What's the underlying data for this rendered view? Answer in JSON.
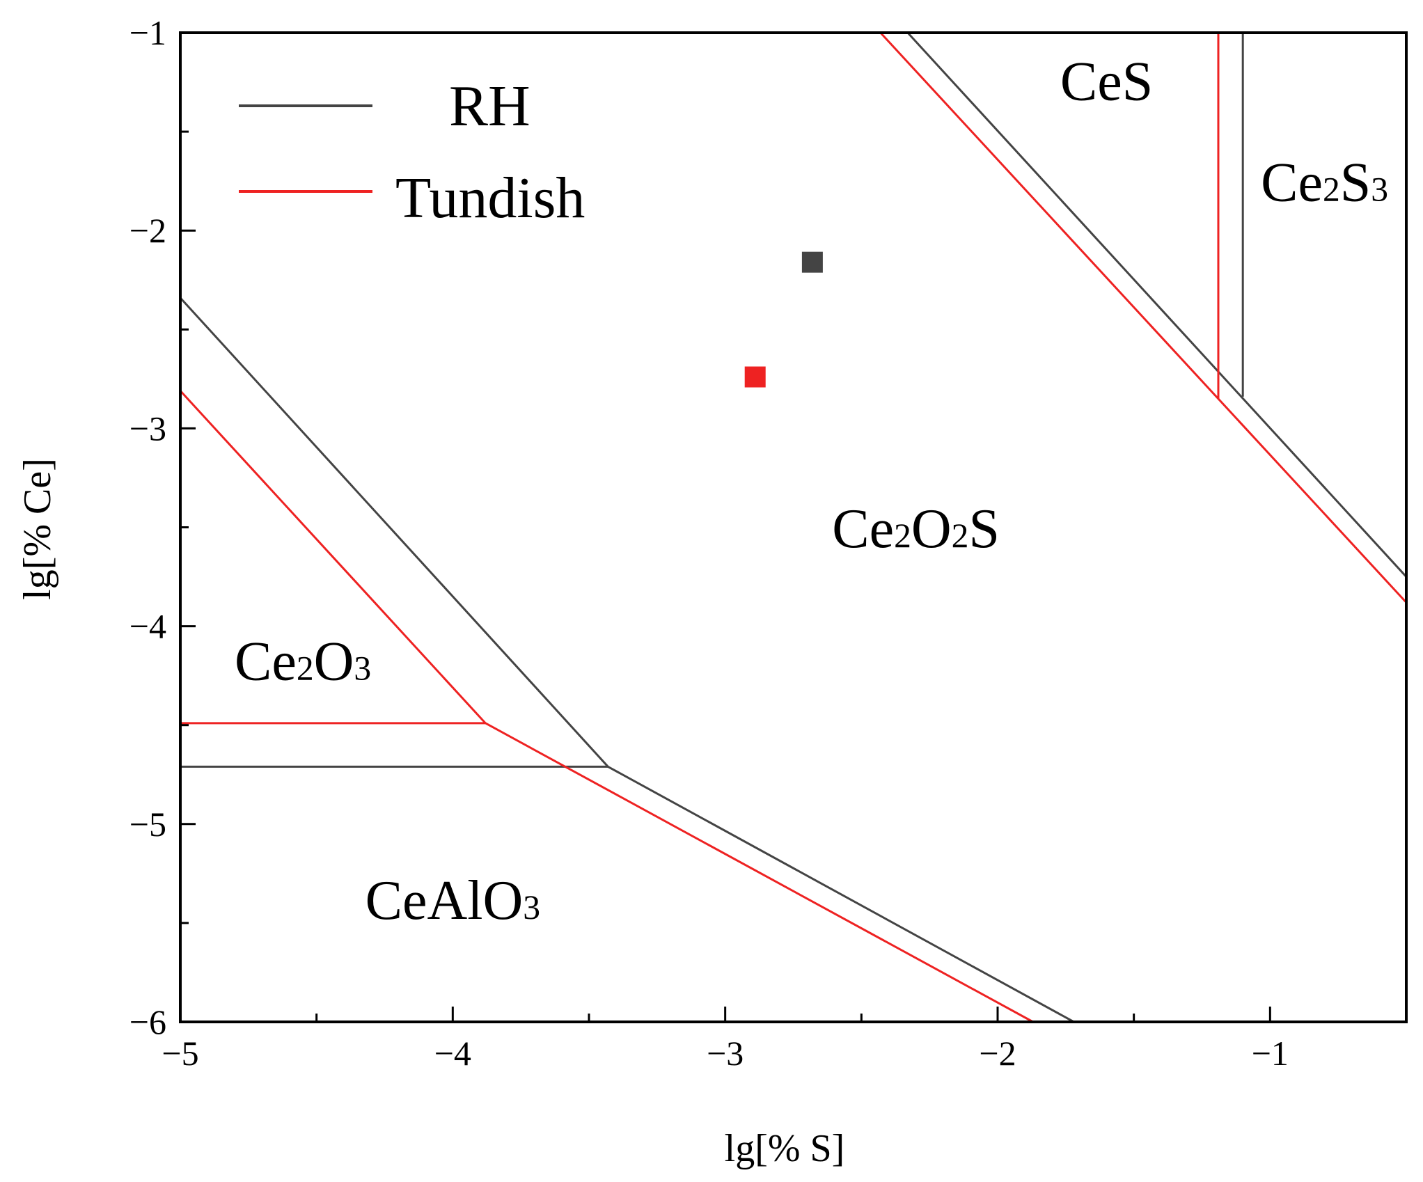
{
  "chart_data": {
    "type": "line",
    "title": "",
    "xlabel": "lg[% S]",
    "ylabel": "lg[% Ce]",
    "xlim": [
      -5,
      -0.5
    ],
    "ylim": [
      -6,
      -1
    ],
    "xticks": [
      -5,
      -4,
      -3,
      -2,
      -1
    ],
    "yticks": [
      -6,
      -5,
      -4,
      -3,
      -2,
      -1
    ],
    "tick_labels": {
      "x": [
        "−5",
        "−4",
        "−3",
        "−2",
        "−1"
      ],
      "y": [
        "−6",
        "−5",
        "−4",
        "−3",
        "−2",
        "−1"
      ]
    },
    "grid": false,
    "legend_position": "top-left",
    "series": [
      {
        "name": "RH",
        "color": "#444444",
        "boundaries": [
          [
            [
              -5.0,
              -2.34
            ],
            [
              -3.43,
              -4.71
            ],
            [
              -1.72,
              -6.0
            ]
          ],
          [
            [
              -5.0,
              -4.71
            ],
            [
              -3.43,
              -4.71
            ]
          ],
          [
            [
              -2.33,
              -1.0
            ],
            [
              -0.5,
              -3.75
            ]
          ],
          [
            [
              -1.1,
              -1.0
            ],
            [
              -1.1,
              -2.84
            ]
          ]
        ],
        "point": {
          "x": -2.68,
          "y": -2.16
        }
      },
      {
        "name": "Tundish",
        "color": "#ee2222",
        "boundaries": [
          [
            [
              -5.0,
              -2.81
            ],
            [
              -3.88,
              -4.49
            ],
            [
              -1.87,
              -6.0
            ]
          ],
          [
            [
              -5.0,
              -4.49
            ],
            [
              -3.88,
              -4.49
            ]
          ],
          [
            [
              -2.43,
              -1.0
            ],
            [
              -0.5,
              -3.88
            ]
          ],
          [
            [
              -1.19,
              -1.0
            ],
            [
              -1.19,
              -2.85
            ]
          ]
        ],
        "point": {
          "x": -2.89,
          "y": -2.74
        }
      }
    ],
    "regions": [
      {
        "name": "CeS",
        "text": "CeS",
        "x": -1.6,
        "y": -1.34
      },
      {
        "name": "Ce2S3",
        "parts": [
          "Ce",
          "2",
          "S",
          "3"
        ],
        "x": -0.8,
        "y": -1.85
      },
      {
        "name": "Ce2O2S",
        "parts": [
          "Ce",
          "2",
          "O",
          "2",
          "S"
        ],
        "x": -2.3,
        "y": -3.6
      },
      {
        "name": "Ce2O3",
        "parts": [
          "Ce",
          "2",
          "O",
          "3"
        ],
        "x": -4.55,
        "y": -4.27
      },
      {
        "name": "CeAlO3",
        "parts": [
          "CeAlO",
          "3"
        ],
        "x": -4.0,
        "y": -5.48
      }
    ]
  }
}
